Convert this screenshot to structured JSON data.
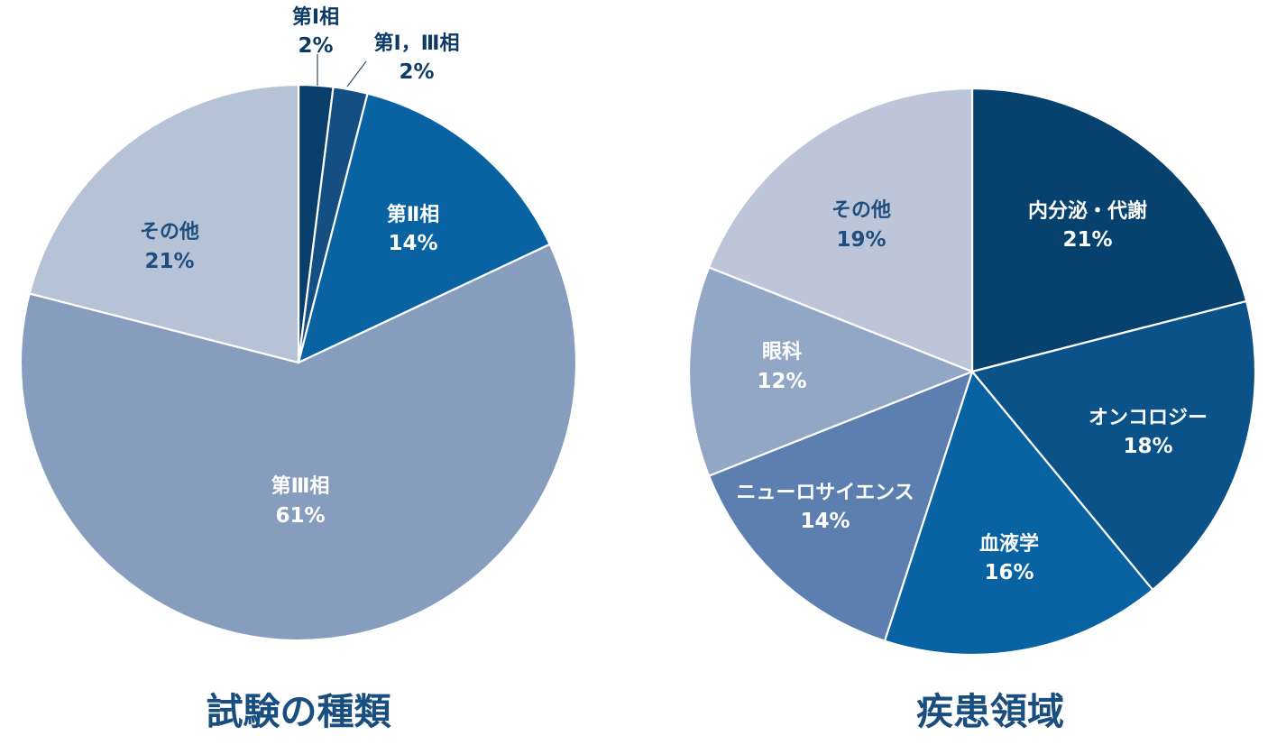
{
  "chart_data": [
    {
      "type": "pie",
      "title": "試験の種類",
      "start": "12 o'clock, clockwise",
      "slices": [
        {
          "label": "第Ⅰ相",
          "pct_label": "2%",
          "value": 2,
          "color": "#0b3f6b",
          "text_color": "#0d3b66"
        },
        {
          "label": "第Ⅰ，Ⅲ相",
          "pct_label": "2%",
          "value": 2,
          "color": "#144f84",
          "text_color": "#0d3b66"
        },
        {
          "label": "第Ⅱ相",
          "pct_label": "14%",
          "value": 14,
          "color": "#0963a3",
          "text_color": "#ffffff"
        },
        {
          "label": "第Ⅲ相",
          "pct_label": "61%",
          "value": 61,
          "color": "#869dbd",
          "text_color": "#ffffff"
        },
        {
          "label": "その他",
          "pct_label": "21%",
          "value": 21,
          "color": "#b6c3d7",
          "text_color": "#1f4e7e"
        }
      ]
    },
    {
      "type": "pie",
      "title": "疾患領域",
      "start": "12 o'clock, clockwise",
      "slices": [
        {
          "label": "内分泌・代謝",
          "pct_label": "21%",
          "value": 21,
          "color": "#07426e",
          "text_color": "#ffffff"
        },
        {
          "label": "オンコロジー",
          "pct_label": "18%",
          "value": 18,
          "color": "#0a5287",
          "text_color": "#ffffff"
        },
        {
          "label": "血液学",
          "pct_label": "16%",
          "value": 16,
          "color": "#0963a3",
          "text_color": "#ffffff"
        },
        {
          "label": "ニューロサイエンス",
          "pct_label": "14%",
          "value": 14,
          "color": "#5c7fb0",
          "text_color": "#ffffff"
        },
        {
          "label": "眼科",
          "pct_label": "12%",
          "value": 12,
          "color": "#92a7c6",
          "text_color": "#ffffff"
        },
        {
          "label": "その他",
          "pct_label": "19%",
          "value": 19,
          "color": "#bcc6d8",
          "text_color": "#1f4e7e"
        }
      ]
    }
  ]
}
